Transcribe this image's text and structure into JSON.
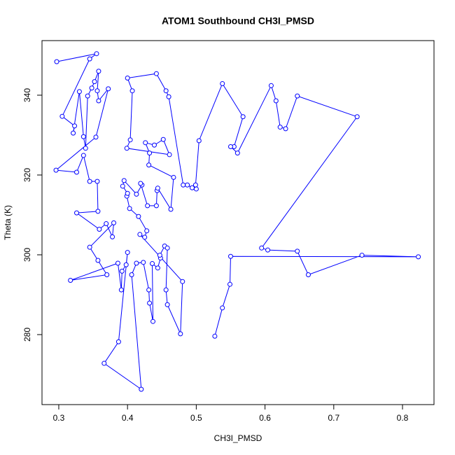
{
  "chart_data": {
    "type": "line",
    "title": "ATOM1 Southbound CH3I_PMSD",
    "x_label": "CH3I_PMSD",
    "y_label": "Theta (K)",
    "color": "#0000ff",
    "markers": true,
    "x": [
      0.297,
      0.355,
      0.345,
      0.305,
      0.323,
      0.321,
      0.33,
      0.336,
      0.339,
      0.342,
      0.348,
      0.352,
      0.358,
      0.356,
      0.358,
      0.372,
      0.354,
      0.296,
      0.326,
      0.336,
      0.345,
      0.356,
      0.357,
      0.326,
      0.359,
      0.369,
      0.378,
      0.38,
      0.345,
      0.357,
      0.37,
      0.317,
      0.386,
      0.391,
      0.392,
      0.398,
      0.4,
      0.387,
      0.366,
      0.42,
      0.406,
      0.413,
      0.423,
      0.431,
      0.432,
      0.437,
      0.436,
      0.444,
      0.448,
      0.447,
      0.454,
      0.458,
      0.456,
      0.458,
      0.477,
      0.48,
      0.418,
      0.425,
      0.428,
      0.416,
      0.403,
      0.399,
      0.4,
      0.393,
      0.395,
      0.413,
      0.421,
      0.419,
      0.429,
      0.442,
      0.443,
      0.444,
      0.463,
      0.467,
      0.431,
      0.432,
      0.426,
      0.439,
      0.452,
      0.461,
      0.399,
      0.404,
      0.407,
      0.4,
      0.442,
      0.456,
      0.46,
      0.481,
      0.487,
      0.494,
      0.5,
      0.499,
      0.504,
      0.538,
      0.568,
      0.555,
      0.55,
      0.56,
      0.609,
      0.616,
      0.622,
      0.63,
      0.647,
      0.734,
      0.595,
      0.604,
      0.647,
      0.663,
      0.741,
      0.823,
      0.55,
      0.549,
      0.538,
      0.527
    ],
    "values": [
      348.4,
      350.4,
      349.1,
      334.7,
      332.3,
      330.5,
      340.9,
      329.6,
      326.7,
      339.8,
      341.8,
      343.4,
      346.0,
      341.1,
      338.6,
      341.6,
      329.5,
      321.2,
      320.7,
      324.9,
      318.4,
      318.4,
      310.9,
      310.5,
      306.4,
      307.8,
      304.5,
      308.0,
      301.9,
      298.6,
      295.0,
      293.6,
      297.9,
      291.2,
      295.9,
      297.5,
      300.6,
      278.2,
      272.8,
      266.3,
      295.0,
      297.9,
      298.1,
      291.2,
      287.9,
      283.3,
      297.8,
      296.7,
      299.2,
      299.9,
      302.2,
      301.7,
      291.2,
      287.5,
      280.2,
      293.3,
      305.1,
      304.4,
      306.0,
      309.6,
      311.6,
      314.7,
      315.4,
      317.2,
      318.6,
      315.2,
      317.5,
      317.9,
      312.3,
      312.3,
      316.1,
      316.7,
      311.4,
      319.4,
      322.5,
      325.5,
      328.1,
      327.5,
      328.9,
      325.1,
      326.7,
      328.8,
      341.1,
      344.3,
      345.4,
      341.1,
      339.6,
      317.5,
      317.5,
      316.8,
      316.5,
      317.5,
      328.6,
      342.9,
      334.6,
      327.1,
      327.1,
      325.5,
      342.4,
      338.6,
      332.0,
      331.6,
      339.8,
      334.6,
      301.7,
      301.2,
      300.9,
      295.0,
      299.9,
      299.5,
      299.6,
      292.6,
      286.7,
      279.6
    ],
    "xlim": [
      0.2756,
      0.8458
    ],
    "ylim": [
      262.46,
      353.68
    ],
    "xticks": [
      0.3,
      0.4,
      0.5,
      0.6,
      0.7,
      0.8
    ],
    "yticks": [
      280,
      300,
      320,
      340
    ]
  }
}
